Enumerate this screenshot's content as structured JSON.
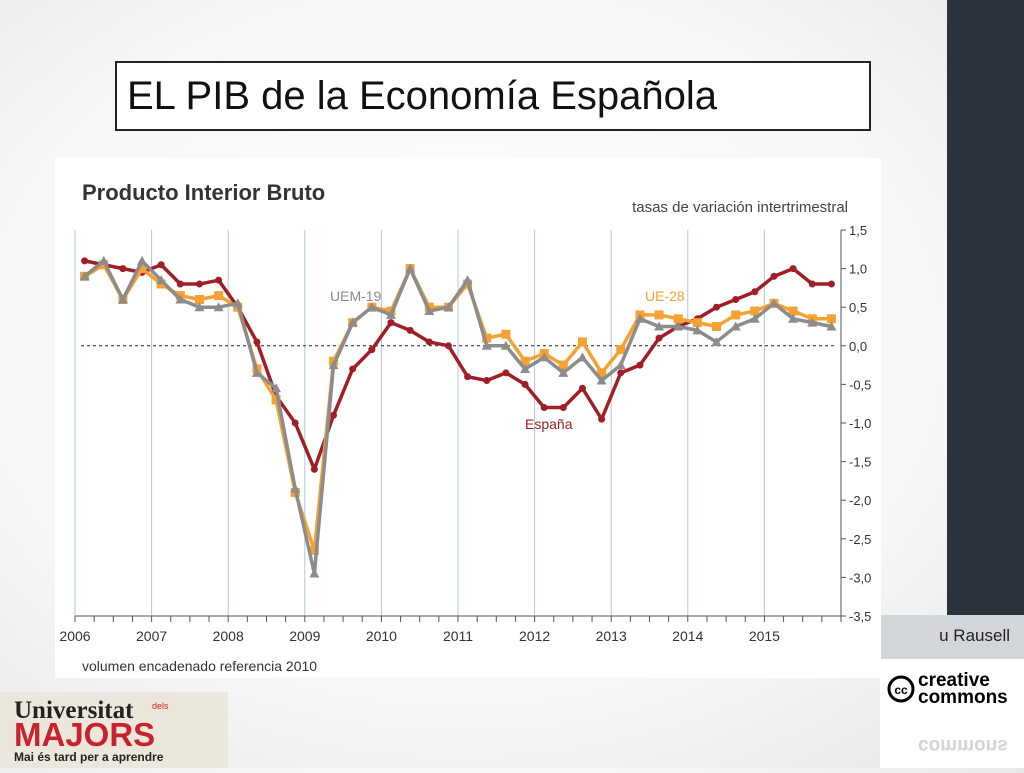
{
  "slide": {
    "title": "EL PIB de la Economía Española",
    "author_fragment": "u Rausell",
    "cc_line1": "creative",
    "cc_line2": "commons",
    "cc_symbol": "cc",
    "logo_line1": "Universitat",
    "logo_small": "dels",
    "logo_line2": "MAJORS",
    "logo_line3": "Mai és tard per a aprendre"
  },
  "colors": {
    "sidebar": "#2b333c",
    "espana": "#a01e26",
    "uem19": "#8c8c8c",
    "ue28": "#f5a233",
    "gridline": "#aec7e0",
    "logo_red": "#c8232c"
  },
  "chart_data": {
    "type": "line",
    "title": "Producto Interior Bruto",
    "subtitle": "tasas de variación intertrimestral",
    "footnote": "volumen encadenado referencia 2010",
    "x_labels": [
      "2006",
      "2007",
      "2008",
      "2009",
      "2010",
      "2011",
      "2012",
      "2013",
      "2014",
      "2015"
    ],
    "y_ticks": [
      "1,5",
      "1,0",
      "0,5",
      "0,0",
      "-0,5",
      "-1,0",
      "-1,5",
      "-2,0",
      "-2,5",
      "-3,0",
      "-3,5"
    ],
    "ylim": [
      -3.5,
      1.5
    ],
    "x": [
      "2006-T1",
      "2006-T2",
      "2006-T3",
      "2006-T4",
      "2007-T1",
      "2007-T2",
      "2007-T3",
      "2007-T4",
      "2008-T1",
      "2008-T2",
      "2008-T3",
      "2008-T4",
      "2009-T1",
      "2009-T2",
      "2009-T3",
      "2009-T4",
      "2010-T1",
      "2010-T2",
      "2010-T3",
      "2010-T4",
      "2011-T1",
      "2011-T2",
      "2011-T3",
      "2011-T4",
      "2012-T1",
      "2012-T2",
      "2012-T3",
      "2012-T4",
      "2013-T1",
      "2013-T2",
      "2013-T3",
      "2013-T4",
      "2014-T1",
      "2014-T2",
      "2014-T3",
      "2014-T4",
      "2015-T1",
      "2015-T2",
      "2015-T3",
      "2015-T4"
    ],
    "series": [
      {
        "name": "España",
        "values": [
          1.1,
          1.05,
          1.0,
          0.95,
          1.05,
          0.8,
          0.8,
          0.85,
          0.5,
          0.05,
          -0.65,
          -1.0,
          -1.6,
          -0.9,
          -0.3,
          -0.05,
          0.3,
          0.2,
          0.05,
          0.0,
          -0.4,
          -0.45,
          -0.35,
          -0.5,
          -0.8,
          -0.8,
          -0.55,
          -0.95,
          -0.35,
          -0.25,
          0.1,
          0.25,
          0.35,
          0.5,
          0.6,
          0.7,
          0.9,
          1.0,
          0.8,
          0.8
        ]
      },
      {
        "name": "UEM-19",
        "values": [
          0.9,
          1.1,
          0.6,
          1.1,
          0.85,
          0.6,
          0.5,
          0.5,
          0.55,
          -0.35,
          -0.55,
          -1.85,
          -2.95,
          -0.25,
          0.3,
          0.5,
          0.4,
          1.0,
          0.45,
          0.5,
          0.85,
          0.0,
          0.0,
          -0.3,
          -0.15,
          -0.35,
          -0.15,
          -0.45,
          -0.25,
          0.35,
          0.25,
          0.25,
          0.2,
          0.05,
          0.25,
          0.35,
          0.55,
          0.35,
          0.3,
          0.25
        ]
      },
      {
        "name": "UE-28",
        "values": [
          0.9,
          1.05,
          0.6,
          1.0,
          0.8,
          0.65,
          0.6,
          0.65,
          0.5,
          -0.3,
          -0.7,
          -1.9,
          -2.65,
          -0.2,
          0.3,
          0.5,
          0.45,
          1.0,
          0.5,
          0.5,
          0.8,
          0.1,
          0.15,
          -0.2,
          -0.1,
          -0.25,
          0.05,
          -0.35,
          -0.05,
          0.4,
          0.4,
          0.35,
          0.3,
          0.25,
          0.4,
          0.45,
          0.55,
          0.45,
          0.35,
          0.35
        ]
      }
    ],
    "series_labels_on_chart": true,
    "grid": "vertical year lines",
    "zero_line": "dashed"
  }
}
